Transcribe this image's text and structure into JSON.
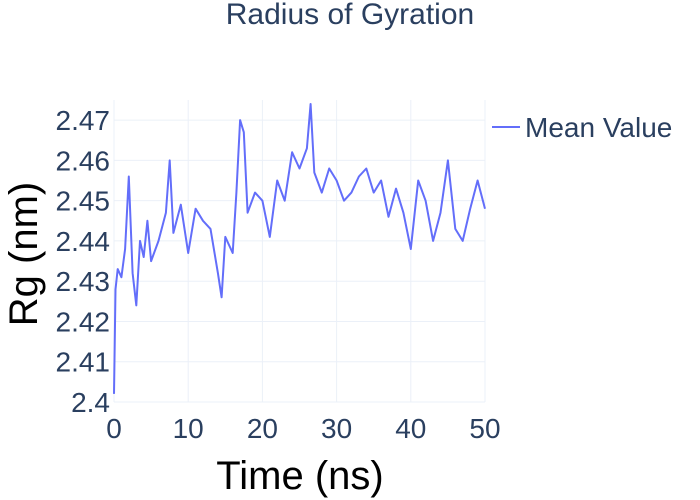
{
  "chart_data": {
    "type": "line",
    "title": "Radius of Gyration",
    "xlabel": "Time (ns)",
    "ylabel": "Rg (nm)",
    "xlim": [
      0,
      50
    ],
    "ylim": [
      2.4,
      2.475
    ],
    "xticks": [
      "0",
      "10",
      "20",
      "30",
      "40",
      "50"
    ],
    "yticks": [
      "2.4",
      "2.41",
      "2.42",
      "2.43",
      "2.44",
      "2.45",
      "2.46",
      "2.47"
    ],
    "grid": true,
    "legend_position": "top-right",
    "series": [
      {
        "name": "Mean Value",
        "color": "#636efa",
        "x": [
          0,
          0.2,
          0.5,
          1,
          1.5,
          2,
          2.5,
          3,
          3.5,
          4,
          4.5,
          5,
          6,
          7,
          7.5,
          8,
          9,
          10,
          11,
          12,
          13,
          14,
          14.5,
          15,
          16,
          16.5,
          17,
          17.5,
          18,
          19,
          20,
          21,
          22,
          23,
          24,
          25,
          26,
          26.5,
          27,
          28,
          29,
          30,
          31,
          32,
          33,
          34,
          35,
          36,
          37,
          38,
          39,
          40,
          41,
          42,
          43,
          44,
          45,
          46,
          47,
          48,
          49,
          50
        ],
        "y": [
          2.402,
          2.428,
          2.433,
          2.431,
          2.438,
          2.456,
          2.432,
          2.424,
          2.44,
          2.436,
          2.445,
          2.435,
          2.44,
          2.447,
          2.46,
          2.442,
          2.449,
          2.437,
          2.448,
          2.445,
          2.443,
          2.432,
          2.426,
          2.441,
          2.437,
          2.452,
          2.47,
          2.467,
          2.447,
          2.452,
          2.45,
          2.441,
          2.455,
          2.45,
          2.462,
          2.458,
          2.463,
          2.474,
          2.457,
          2.452,
          2.458,
          2.455,
          2.45,
          2.452,
          2.456,
          2.458,
          2.452,
          2.455,
          2.446,
          2.453,
          2.447,
          2.438,
          2.455,
          2.45,
          2.44,
          2.447,
          2.46,
          2.443,
          2.44,
          2.448,
          2.455,
          2.448
        ]
      }
    ]
  }
}
